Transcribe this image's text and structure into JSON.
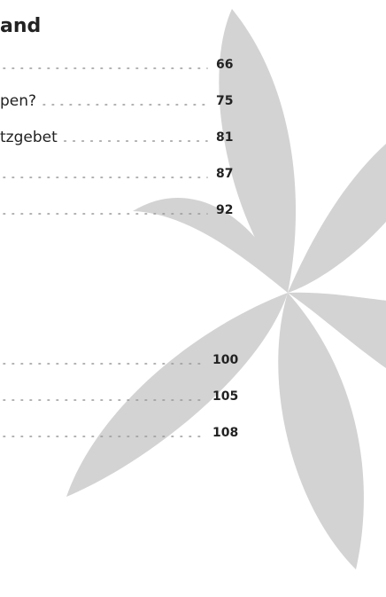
{
  "heading": "and",
  "sections": [
    {
      "entries": [
        {
          "page": "66"
        },
        {
          "text": "pen?",
          "page": "75"
        },
        {
          "text": "tzgebet",
          "page": "81"
        },
        {
          "page": "87"
        },
        {
          "page": "92"
        }
      ]
    },
    {
      "entries": [
        {
          "page": "100"
        },
        {
          "page": "105"
        },
        {
          "page": "108"
        }
      ]
    }
  ]
}
